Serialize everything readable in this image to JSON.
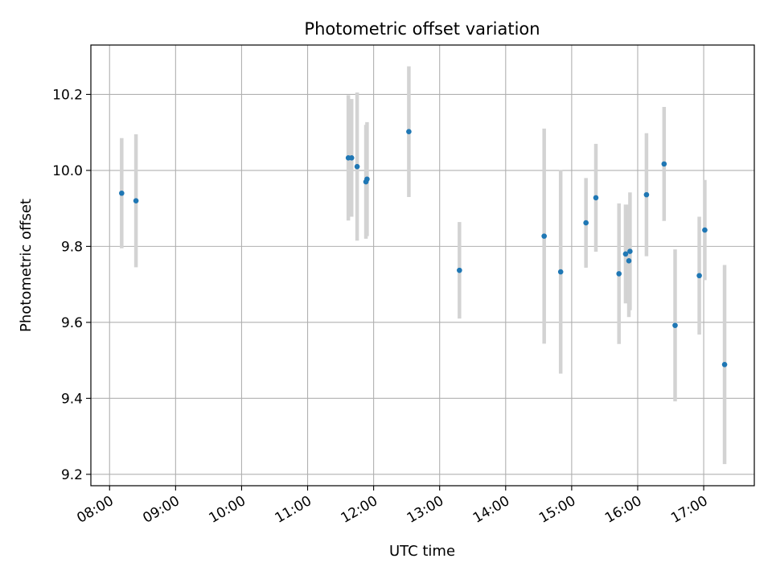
{
  "chart_data": {
    "type": "scatter",
    "title": "Photometric offset variation",
    "xlabel": "UTC time",
    "ylabel": "Photometric offset",
    "x_ticks": [
      "08:00",
      "09:00",
      "10:00",
      "11:00",
      "12:00",
      "13:00",
      "14:00",
      "15:00",
      "16:00",
      "17:00"
    ],
    "y_ticks": [
      "9.2",
      "9.4",
      "9.6",
      "9.8",
      "10.0",
      "10.2"
    ],
    "xlim": [
      "07:43",
      "17:46"
    ],
    "ylim": [
      9.17,
      10.33
    ],
    "grid": true,
    "legend": "none",
    "colors": {
      "points": "#1f77b4",
      "errorbars": "#d3d3d3",
      "grid": "#b0b0b0"
    },
    "points": [
      {
        "t": "08:11",
        "y": 9.94,
        "err": 0.145
      },
      {
        "t": "08:24",
        "y": 9.92,
        "err": 0.175
      },
      {
        "t": "11:37",
        "y": 10.033,
        "err": 0.165
      },
      {
        "t": "11:40",
        "y": 10.033,
        "err": 0.155
      },
      {
        "t": "11:45",
        "y": 10.01,
        "err": 0.195
      },
      {
        "t": "11:53",
        "y": 9.97,
        "err": 0.15
      },
      {
        "t": "11:54",
        "y": 9.977,
        "err": 0.15
      },
      {
        "t": "12:32",
        "y": 10.102,
        "err": 0.172
      },
      {
        "t": "13:18",
        "y": 9.737,
        "err": 0.127
      },
      {
        "t": "14:35",
        "y": 9.827,
        "err": 0.283
      },
      {
        "t": "14:50",
        "y": 9.733,
        "err": 0.268
      },
      {
        "t": "15:13",
        "y": 9.862,
        "err": 0.118
      },
      {
        "t": "15:22",
        "y": 9.928,
        "err": 0.142
      },
      {
        "t": "15:43",
        "y": 9.728,
        "err": 0.185
      },
      {
        "t": "15:49",
        "y": 9.78,
        "err": 0.13
      },
      {
        "t": "15:52",
        "y": 9.762,
        "err": 0.148
      },
      {
        "t": "15:53",
        "y": 9.787,
        "err": 0.155
      },
      {
        "t": "16:08",
        "y": 9.936,
        "err": 0.162
      },
      {
        "t": "16:24",
        "y": 10.017,
        "err": 0.15
      },
      {
        "t": "16:34",
        "y": 9.592,
        "err": 0.2
      },
      {
        "t": "16:56",
        "y": 9.723,
        "err": 0.155
      },
      {
        "t": "17:01",
        "y": 9.843,
        "err": 0.132
      },
      {
        "t": "17:19",
        "y": 9.489,
        "err": 0.262
      }
    ]
  }
}
